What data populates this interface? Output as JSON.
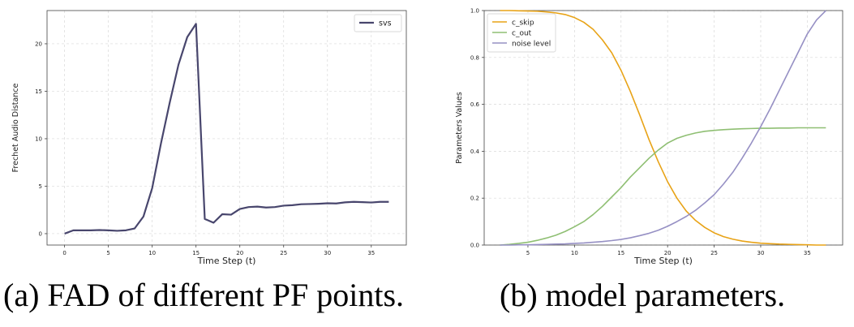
{
  "captions": {
    "a": "(a) FAD of different PF points.",
    "b": "(b) model parameters."
  },
  "chart_data": [
    {
      "type": "line",
      "xlabel": "Time Step (t)",
      "ylabel": "Frechet Audio Distance",
      "xlim": [
        -2,
        39
      ],
      "ylim": [
        -1.2,
        23.5
      ],
      "xticks": [
        0,
        5,
        10,
        15,
        20,
        25,
        30,
        35
      ],
      "yticks": [
        0,
        5,
        10,
        15,
        20
      ],
      "grid": true,
      "legend": "top-right",
      "series": [
        {
          "name": "svs",
          "color": "#48466d",
          "x": [
            0,
            1,
            2,
            3,
            4,
            5,
            6,
            7,
            8,
            9,
            10,
            11,
            12,
            13,
            14,
            15,
            16,
            17,
            18,
            19,
            20,
            21,
            22,
            23,
            24,
            25,
            26,
            27,
            28,
            29,
            30,
            31,
            32,
            33,
            34,
            35,
            36,
            37
          ],
          "y": [
            0.0,
            0.35,
            0.35,
            0.35,
            0.38,
            0.35,
            0.3,
            0.35,
            0.55,
            1.8,
            4.8,
            9.5,
            13.8,
            17.8,
            20.7,
            22.1,
            1.55,
            1.15,
            2.05,
            2.0,
            2.6,
            2.8,
            2.85,
            2.75,
            2.8,
            2.95,
            3.0,
            3.1,
            3.12,
            3.15,
            3.2,
            3.18,
            3.3,
            3.35,
            3.32,
            3.28,
            3.35,
            3.35
          ]
        }
      ]
    },
    {
      "type": "line",
      "xlabel": "Time Step (t)",
      "ylabel": "Parameters Values",
      "xlim": [
        0.3,
        38.8
      ],
      "ylim": [
        0,
        1.0
      ],
      "xticks": [
        5,
        10,
        15,
        20,
        25,
        30,
        35
      ],
      "yticks": [
        0.0,
        0.2,
        0.4,
        0.6,
        0.8,
        1.0
      ],
      "grid": true,
      "legend": "top-left",
      "series": [
        {
          "name": "c_skip",
          "color": "#e8a317",
          "x": [
            2,
            3,
            4,
            5,
            6,
            7,
            8,
            9,
            10,
            11,
            12,
            13,
            14,
            15,
            16,
            17,
            18,
            19,
            20,
            21,
            22,
            23,
            24,
            25,
            26,
            27,
            28,
            29,
            30,
            31,
            32,
            33,
            34,
            35,
            36,
            37
          ],
          "y": [
            1.0,
            1.0,
            0.999,
            0.998,
            0.997,
            0.994,
            0.99,
            0.983,
            0.97,
            0.95,
            0.92,
            0.875,
            0.82,
            0.745,
            0.655,
            0.555,
            0.45,
            0.355,
            0.27,
            0.2,
            0.145,
            0.105,
            0.075,
            0.052,
            0.036,
            0.025,
            0.017,
            0.012,
            0.008,
            0.006,
            0.004,
            0.003,
            0.002,
            0.001,
            0.0,
            0.0
          ]
        },
        {
          "name": "c_out",
          "color": "#8fbf73",
          "x": [
            2,
            3,
            4,
            5,
            6,
            7,
            8,
            9,
            10,
            11,
            12,
            13,
            14,
            15,
            16,
            17,
            18,
            19,
            20,
            21,
            22,
            23,
            24,
            25,
            26,
            27,
            28,
            29,
            30,
            31,
            32,
            33,
            34,
            35,
            36,
            37
          ],
          "y": [
            0.0,
            0.003,
            0.007,
            0.012,
            0.02,
            0.03,
            0.042,
            0.058,
            0.078,
            0.1,
            0.13,
            0.165,
            0.205,
            0.245,
            0.29,
            0.33,
            0.37,
            0.405,
            0.435,
            0.455,
            0.468,
            0.478,
            0.485,
            0.489,
            0.492,
            0.494,
            0.496,
            0.497,
            0.498,
            0.498,
            0.499,
            0.499,
            0.5,
            0.5,
            0.5,
            0.5
          ]
        },
        {
          "name": "noise level",
          "color": "#9690c4",
          "x": [
            2,
            3,
            4,
            5,
            6,
            7,
            8,
            9,
            10,
            11,
            12,
            13,
            14,
            15,
            16,
            17,
            18,
            19,
            20,
            21,
            22,
            23,
            24,
            25,
            26,
            27,
            28,
            29,
            30,
            31,
            32,
            33,
            34,
            35,
            36,
            37
          ],
          "y": [
            0.0,
            0.0,
            0.001,
            0.001,
            0.002,
            0.003,
            0.004,
            0.005,
            0.007,
            0.009,
            0.012,
            0.015,
            0.019,
            0.024,
            0.031,
            0.04,
            0.05,
            0.063,
            0.08,
            0.1,
            0.122,
            0.148,
            0.18,
            0.215,
            0.26,
            0.31,
            0.37,
            0.435,
            0.505,
            0.58,
            0.66,
            0.74,
            0.82,
            0.9,
            0.96,
            1.0
          ]
        }
      ]
    }
  ]
}
